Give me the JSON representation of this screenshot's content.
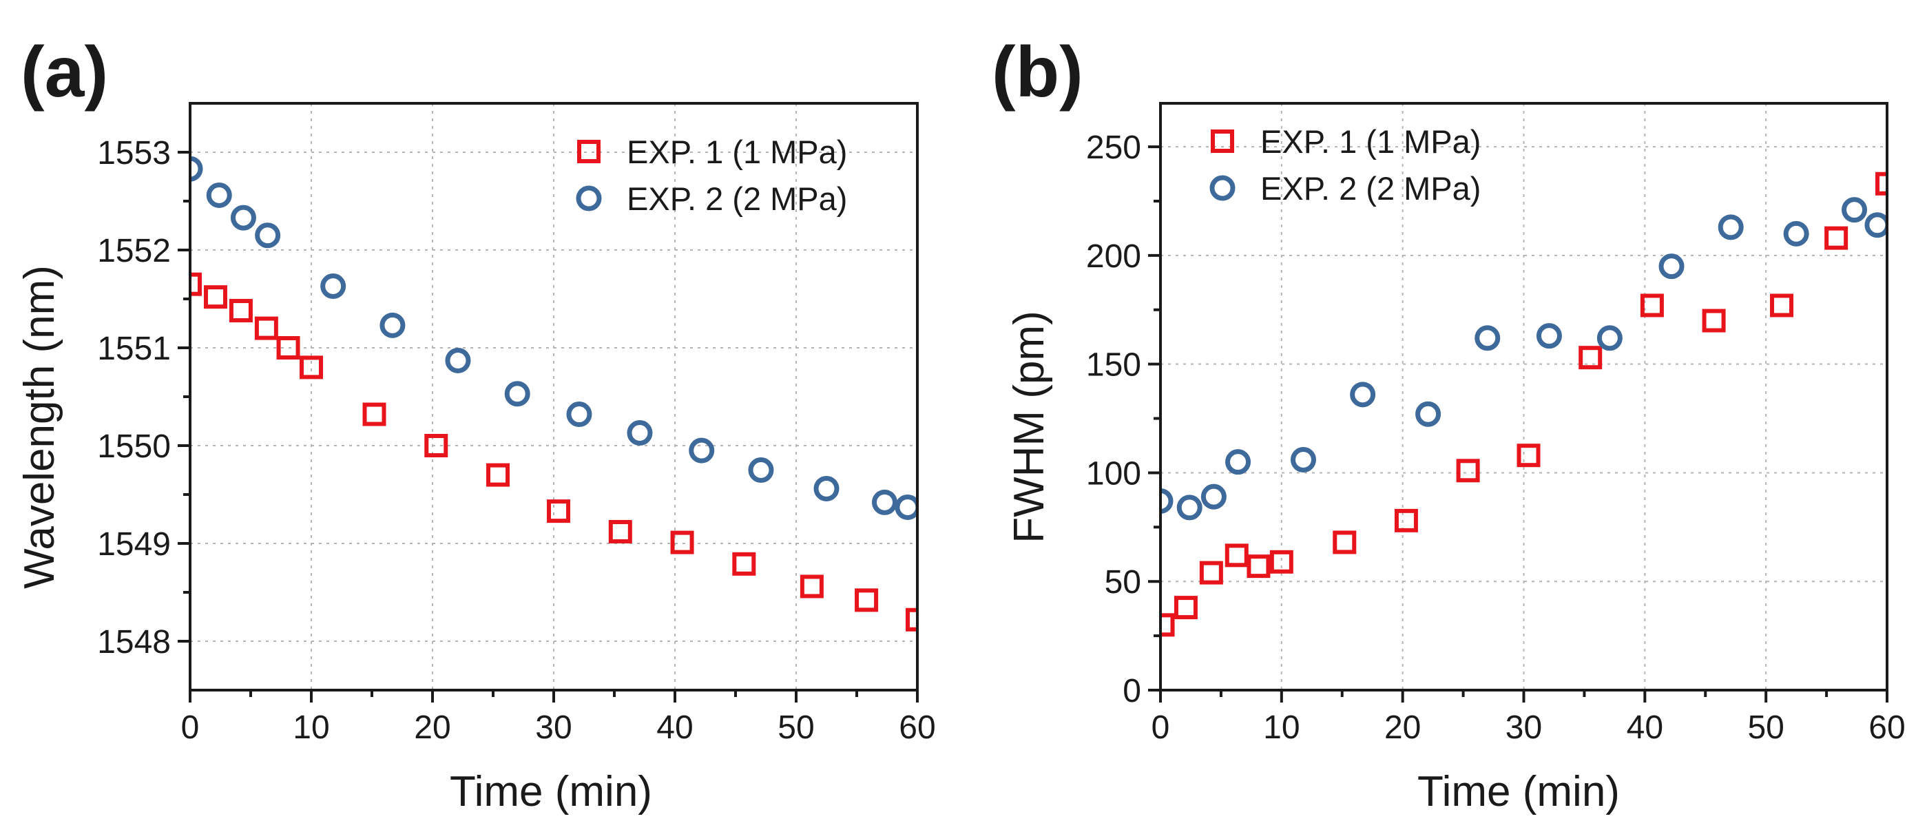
{
  "colors": {
    "series1": "#e8141b",
    "series2": "#3d6a9a",
    "axis": "#1a1a1a",
    "grid": "#b4b4b4"
  },
  "chart_data": [
    {
      "panel_label": "(a)",
      "type": "scatter",
      "xlabel": "Time (min)",
      "ylabel": "Wavelength (nm)",
      "xlim": [
        0,
        60
      ],
      "ylim": [
        1547.5,
        1553.5
      ],
      "xticks": [
        0,
        10,
        20,
        30,
        40,
        50,
        60
      ],
      "yticks": [
        1548,
        1549,
        1550,
        1551,
        1552,
        1553
      ],
      "grid": true,
      "legend_position": "top-right",
      "series": [
        {
          "name": "EXP. 1 (1 MPa)",
          "marker": "square",
          "color": "#e8141b",
          "x": [
            0,
            2.1,
            4.2,
            6.3,
            8.1,
            10,
            15.2,
            20.3,
            25.4,
            30.4,
            35.5,
            40.6,
            45.7,
            51.3,
            55.8,
            60
          ],
          "y": [
            1551.65,
            1551.52,
            1551.38,
            1551.2,
            1551.0,
            1550.8,
            1550.32,
            1550.0,
            1549.7,
            1549.33,
            1549.12,
            1549.01,
            1548.79,
            1548.56,
            1548.42,
            1548.22
          ]
        },
        {
          "name": "EXP. 2 (2 MPa)",
          "marker": "circle",
          "color": "#3d6a9a",
          "x": [
            0,
            2.4,
            4.4,
            6.4,
            11.8,
            16.7,
            22.1,
            27.0,
            32.1,
            37.1,
            42.2,
            47.1,
            52.5,
            57.3,
            59.2
          ],
          "y": [
            1552.83,
            1552.56,
            1552.33,
            1552.15,
            1551.63,
            1551.23,
            1550.87,
            1550.53,
            1550.32,
            1550.13,
            1549.95,
            1549.75,
            1549.56,
            1549.42,
            1549.37
          ]
        }
      ]
    },
    {
      "panel_label": "(b)",
      "type": "scatter",
      "xlabel": "Time (min)",
      "ylabel": "FWHM (pm)",
      "xlim": [
        0,
        60
      ],
      "ylim": [
        0,
        270
      ],
      "xticks": [
        0,
        10,
        20,
        30,
        40,
        50,
        60
      ],
      "yticks": [
        0,
        50,
        100,
        150,
        200,
        250
      ],
      "grid": true,
      "legend_position": "top-left",
      "series": [
        {
          "name": "EXP. 1 (1 MPa)",
          "marker": "square",
          "color": "#e8141b",
          "x": [
            0.2,
            2.1,
            4.2,
            6.3,
            8.1,
            10,
            15.2,
            20.3,
            25.4,
            30.4,
            35.5,
            40.6,
            45.7,
            51.3,
            55.8,
            60
          ],
          "y": [
            30,
            38,
            54,
            62,
            57,
            59,
            68,
            78,
            101,
            108,
            153,
            177,
            170,
            177,
            208,
            233
          ]
        },
        {
          "name": "EXP. 2 (2 MPa)",
          "marker": "circle",
          "color": "#3d6a9a",
          "x": [
            0,
            2.4,
            4.4,
            6.4,
            11.8,
            16.7,
            22.1,
            27.0,
            32.1,
            37.1,
            42.2,
            47.1,
            52.5,
            57.3,
            59.2
          ],
          "y": [
            87,
            84,
            89,
            105,
            106,
            136,
            127,
            162,
            163,
            162,
            195,
            213,
            210,
            221,
            214
          ]
        }
      ]
    }
  ]
}
